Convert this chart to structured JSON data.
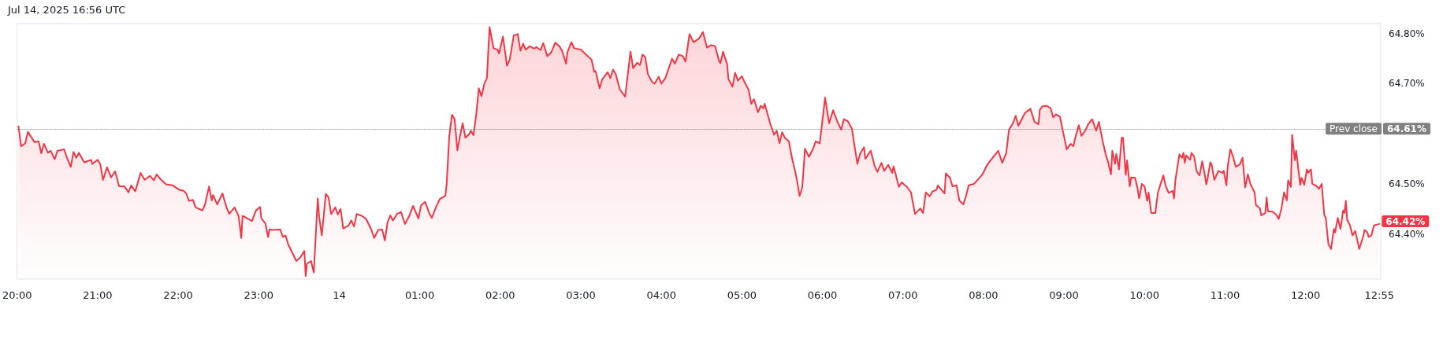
{
  "chart_data": {
    "type": "area",
    "annotations": [
      "Jul 14, 2025 16:56 UTC",
      "64.61%",
      {
        "text": "64.42%",
        "x": "2025-07-14T12:55",
        "y": 64.42
      }
    ],
    "xlim": [
      "2025-07-13T20:00",
      "2025-07-14T12:56"
    ],
    "xticks": [
      {
        "value": "2025-07-13T20:00",
        "label": "20:00"
      },
      {
        "value": "2025-07-13T21:00",
        "label": "21:00"
      },
      {
        "value": "2025-07-13T22:00",
        "label": "22:00"
      },
      {
        "value": "2025-07-13T23:00",
        "label": "23:00"
      },
      {
        "value": "2025-07-14T00:00",
        "label": "14"
      },
      {
        "value": "2025-07-14T01:00",
        "label": "01:00"
      },
      {
        "value": "2025-07-14T02:00",
        "label": "02:00"
      },
      {
        "value": "2025-07-14T03:00",
        "label": "03:00"
      },
      {
        "value": "2025-07-14T04:00",
        "label": "04:00"
      },
      {
        "value": "2025-07-14T05:00",
        "label": "05:00"
      },
      {
        "value": "2025-07-14T06:00",
        "label": "06:00"
      },
      {
        "value": "2025-07-14T07:00",
        "label": "07:00"
      },
      {
        "value": "2025-07-14T08:00",
        "label": "08:00"
      },
      {
        "value": "2025-07-14T09:00",
        "label": "09:00"
      },
      {
        "value": "2025-07-14T10:00",
        "label": "10:00"
      },
      {
        "value": "2025-07-14T11:00",
        "label": "11:00"
      },
      {
        "value": "2025-07-14T12:00",
        "label": "12:00"
      },
      {
        "value": "2025-07-14T12:55",
        "label": "12:55"
      }
    ],
    "ylim": [
      64.31,
      64.82
    ],
    "yticks": [
      {
        "value": 64.4,
        "label": "64.40%"
      },
      {
        "value": 64.5,
        "label": "64.50%"
      },
      {
        "value": 64.7,
        "label": "64.70%"
      },
      {
        "value": 64.8,
        "label": "64.80%"
      }
    ],
    "ref_lines": [
      {
        "axis": "y",
        "value": 64.61,
        "label": "Prev close",
        "color": "#808080",
        "line_style": "dotted"
      }
    ],
    "marker": "none",
    "line_style": "solid",
    "series": [
      {
        "color": "#f23645",
        "x": [
          "2025-07-13T20:01",
          "2025-07-13T20:03",
          "2025-07-13T20:06",
          "2025-07-13T20:08",
          "2025-07-13T20:13",
          "2025-07-13T20:16",
          "2025-07-13T20:18",
          "2025-07-13T20:20",
          "2025-07-13T20:23",
          "2025-07-13T20:25",
          "2025-07-13T20:28",
          "2025-07-13T20:30",
          "2025-07-13T20:35",
          "2025-07-13T20:37",
          "2025-07-13T20:40",
          "2025-07-13T20:42",
          "2025-07-13T20:44",
          "2025-07-13T20:46",
          "2025-07-13T20:50",
          "2025-07-13T20:55",
          "2025-07-13T20:56",
          "2025-07-13T21:00",
          "2025-07-13T21:02",
          "2025-07-13T21:04",
          "2025-07-13T21:07",
          "2025-07-13T21:10",
          "2025-07-13T21:13",
          "2025-07-13T21:16",
          "2025-07-13T21:20",
          "2025-07-13T21:23",
          "2025-07-13T21:25",
          "2025-07-13T21:28",
          "2025-07-13T21:32",
          "2025-07-13T21:35",
          "2025-07-13T21:39",
          "2025-07-13T21:42",
          "2025-07-13T21:44",
          "2025-07-13T21:47",
          "2025-07-13T21:51",
          "2025-07-13T21:56",
          "2025-07-13T22:01",
          "2025-07-13T22:04",
          "2025-07-13T22:06",
          "2025-07-13T22:08",
          "2025-07-13T22:11",
          "2025-07-13T22:13",
          "2025-07-13T22:18",
          "2025-07-13T22:20",
          "2025-07-13T22:23",
          "2025-07-13T22:25",
          "2025-07-13T22:26",
          "2025-07-13T22:29",
          "2025-07-13T22:33",
          "2025-07-13T22:36",
          "2025-07-13T22:38",
          "2025-07-13T22:42",
          "2025-07-13T22:45",
          "2025-07-13T22:47",
          "2025-07-13T22:48",
          "2025-07-13T22:51",
          "2025-07-13T22:55",
          "2025-07-13T22:58",
          "2025-07-13T23:01",
          "2025-07-13T23:02",
          "2025-07-13T23:05",
          "2025-07-13T23:07",
          "2025-07-13T23:08",
          "2025-07-13T23:11",
          "2025-07-13T23:16",
          "2025-07-13T23:18",
          "2025-07-13T23:20",
          "2025-07-13T23:22",
          "2025-07-13T23:24",
          "2025-07-13T23:28",
          "2025-07-13T23:31",
          "2025-07-13T23:34",
          "2025-07-13T23:35",
          "2025-07-13T23:36",
          "2025-07-13T23:39",
          "2025-07-13T23:41",
          "2025-07-13T23:44",
          "2025-07-13T23:45",
          "2025-07-13T23:47",
          "2025-07-13T23:50",
          "2025-07-13T23:52",
          "2025-07-13T23:54",
          "2025-07-13T23:57",
          "2025-07-13T23:59",
          "2025-07-14T00:01",
          "2025-07-14T00:03",
          "2025-07-14T00:07",
          "2025-07-14T00:09",
          "2025-07-14T00:11",
          "2025-07-14T00:13",
          "2025-07-14T00:17",
          "2025-07-14T00:20",
          "2025-07-14T00:24",
          "2025-07-14T00:26",
          "2025-07-14T00:29",
          "2025-07-14T00:32",
          "2025-07-14T00:34",
          "2025-07-14T00:36",
          "2025-07-14T00:38",
          "2025-07-14T00:40",
          "2025-07-14T00:43",
          "2025-07-14T00:46",
          "2025-07-14T00:49",
          "2025-07-14T00:52",
          "2025-07-14T00:55",
          "2025-07-14T00:59",
          "2025-07-14T01:01",
          "2025-07-14T01:04",
          "2025-07-14T01:07",
          "2025-07-14T01:09",
          "2025-07-14T01:12",
          "2025-07-14T01:15",
          "2025-07-14T01:19",
          "2025-07-14T01:20",
          "2025-07-14T01:22",
          "2025-07-14T01:24",
          "2025-07-14T01:26",
          "2025-07-14T01:28",
          "2025-07-14T01:30",
          "2025-07-14T01:32",
          "2025-07-14T01:34",
          "2025-07-14T01:37",
          "2025-07-14T01:38",
          "2025-07-14T01:40",
          "2025-07-14T01:42",
          "2025-07-14T01:44",
          "2025-07-14T01:46",
          "2025-07-14T01:48",
          "2025-07-14T01:50",
          "2025-07-14T01:52",
          "2025-07-14T01:55",
          "2025-07-14T01:58",
          "2025-07-14T01:59",
          "2025-07-14T02:02",
          "2025-07-14T02:05",
          "2025-07-14T02:07",
          "2025-07-14T02:10",
          "2025-07-14T02:13",
          "2025-07-14T02:15",
          "2025-07-14T02:17",
          "2025-07-14T02:19",
          "2025-07-14T02:22",
          "2025-07-14T02:25",
          "2025-07-14T02:27",
          "2025-07-14T02:30",
          "2025-07-14T02:32",
          "2025-07-14T02:35",
          "2025-07-14T02:38",
          "2025-07-14T02:41",
          "2025-07-14T02:44",
          "2025-07-14T02:46",
          "2025-07-14T02:49",
          "2025-07-14T02:50",
          "2025-07-14T02:53",
          "2025-07-14T02:55",
          "2025-07-14T03:00",
          "2025-07-14T03:04",
          "2025-07-14T03:08",
          "2025-07-14T03:10",
          "2025-07-14T03:11",
          "2025-07-14T03:14",
          "2025-07-14T03:16",
          "2025-07-14T03:20",
          "2025-07-14T03:22",
          "2025-07-14T03:24",
          "2025-07-14T03:26",
          "2025-07-14T03:29",
          "2025-07-14T03:33",
          "2025-07-14T03:37",
          "2025-07-14T03:39",
          "2025-07-14T03:42",
          "2025-07-14T03:44",
          "2025-07-14T03:46",
          "2025-07-14T03:48",
          "2025-07-14T03:50",
          "2025-07-14T03:53",
          "2025-07-14T03:55",
          "2025-07-14T03:58",
          "2025-07-14T04:00",
          "2025-07-14T04:03",
          "2025-07-14T04:05",
          "2025-07-14T04:08",
          "2025-07-14T04:10",
          "2025-07-14T04:13",
          "2025-07-14T04:16",
          "2025-07-14T04:18",
          "2025-07-14T04:21",
          "2025-07-14T04:24",
          "2025-07-14T04:28",
          "2025-07-14T04:31",
          "2025-07-14T04:34",
          "2025-07-14T04:37",
          "2025-07-14T04:40",
          "2025-07-14T04:43",
          "2025-07-14T04:44",
          "2025-07-14T04:46",
          "2025-07-14T04:49",
          "2025-07-14T04:50",
          "2025-07-14T04:53",
          "2025-07-14T04:55",
          "2025-07-14T04:57",
          "2025-07-14T05:00",
          "2025-07-14T05:02",
          "2025-07-14T05:05",
          "2025-07-14T05:07",
          "2025-07-14T05:09",
          "2025-07-14T05:12",
          "2025-07-14T05:14",
          "2025-07-14T05:16",
          "2025-07-14T05:17",
          "2025-07-14T05:21",
          "2025-07-14T05:24",
          "2025-07-14T05:26",
          "2025-07-14T05:28",
          "2025-07-14T05:30",
          "2025-07-14T05:32",
          "2025-07-14T05:35",
          "2025-07-14T05:37",
          "2025-07-14T05:40",
          "2025-07-14T05:41",
          "2025-07-14T05:43",
          "2025-07-14T05:45",
          "2025-07-14T05:47",
          "2025-07-14T05:50",
          "2025-07-14T05:53",
          "2025-07-14T05:55",
          "2025-07-14T05:58",
          "2025-07-14T06:02",
          "2025-07-14T06:05",
          "2025-07-14T06:08",
          "2025-07-14T06:11",
          "2025-07-14T06:14",
          "2025-07-14T06:16",
          "2025-07-14T06:19",
          "2025-07-14T06:22",
          "2025-07-14T06:26",
          "2025-07-14T06:28",
          "2025-07-14T06:31",
          "2025-07-14T06:32",
          "2025-07-14T06:36",
          "2025-07-14T06:39",
          "2025-07-14T06:41",
          "2025-07-14T06:44",
          "2025-07-14T06:46",
          "2025-07-14T06:49",
          "2025-07-14T06:52",
          "2025-07-14T06:53",
          "2025-07-14T06:57",
          "2025-07-14T06:59",
          "2025-07-14T07:03",
          "2025-07-14T07:06",
          "2025-07-14T07:09",
          "2025-07-14T07:13",
          "2025-07-14T07:15",
          "2025-07-14T07:17",
          "2025-07-14T07:20",
          "2025-07-14T07:22",
          "2025-07-14T07:25",
          "2025-07-14T07:26",
          "2025-07-14T07:31",
          "2025-07-14T07:32",
          "2025-07-14T07:35",
          "2025-07-14T07:37",
          "2025-07-14T07:40",
          "2025-07-14T07:42",
          "2025-07-14T07:45",
          "2025-07-14T07:47",
          "2025-07-14T07:49",
          "2025-07-14T07:53",
          "2025-07-14T07:56",
          "2025-07-14T07:59",
          "2025-07-14T08:03",
          "2025-07-14T08:08",
          "2025-07-14T08:11",
          "2025-07-14T08:14",
          "2025-07-14T08:17",
          "2025-07-14T08:19",
          "2025-07-14T08:22",
          "2025-07-14T08:24",
          "2025-07-14T08:26",
          "2025-07-14T08:31",
          "2025-07-14T08:35",
          "2025-07-14T08:38",
          "2025-07-14T08:41",
          "2025-07-14T08:42",
          "2025-07-14T08:44",
          "2025-07-14T08:47",
          "2025-07-14T08:50",
          "2025-07-14T08:52",
          "2025-07-14T08:54",
          "2025-07-14T08:57",
          "2025-07-14T08:59",
          "2025-07-14T09:02",
          "2025-07-14T09:05",
          "2025-07-14T09:07",
          "2025-07-14T09:08",
          "2025-07-14T09:11",
          "2025-07-14T09:13",
          "2025-07-14T09:16",
          "2025-07-14T09:18",
          "2025-07-14T09:21",
          "2025-07-14T09:24",
          "2025-07-14T09:26",
          "2025-07-14T09:29",
          "2025-07-14T09:31",
          "2025-07-14T09:33",
          "2025-07-14T09:35",
          "2025-07-14T09:36",
          "2025-07-14T09:38",
          "2025-07-14T09:39",
          "2025-07-14T09:41",
          "2025-07-14T09:43",
          "2025-07-14T09:44",
          "2025-07-14T09:46",
          "2025-07-14T09:47",
          "2025-07-14T09:49",
          "2025-07-14T09:50",
          "2025-07-14T09:53",
          "2025-07-14T09:55",
          "2025-07-14T09:56",
          "2025-07-14T09:58",
          "2025-07-14T10:00",
          "2025-07-14T10:02",
          "2025-07-14T10:03",
          "2025-07-14T10:05",
          "2025-07-14T10:08",
          "2025-07-14T10:10",
          "2025-07-14T10:12",
          "2025-07-14T10:14",
          "2025-07-14T10:16",
          "2025-07-14T10:18",
          "2025-07-14T10:21",
          "2025-07-14T10:22",
          "2025-07-14T10:23",
          "2025-07-14T10:26",
          "2025-07-14T10:28",
          "2025-07-14T10:29",
          "2025-07-14T10:30",
          "2025-07-14T10:31",
          "2025-07-14T10:34",
          "2025-07-14T10:35",
          "2025-07-14T10:37",
          "2025-07-14T10:39",
          "2025-07-14T10:41",
          "2025-07-14T10:43",
          "2025-07-14T10:45",
          "2025-07-14T10:46",
          "2025-07-14T10:47",
          "2025-07-14T10:49",
          "2025-07-14T10:50",
          "2025-07-14T10:52",
          "2025-07-14T10:55",
          "2025-07-14T10:58",
          "2025-07-14T10:59",
          "2025-07-14T11:01",
          "2025-07-14T11:02",
          "2025-07-14T11:04",
          "2025-07-14T11:06",
          "2025-07-14T11:08",
          "2025-07-14T11:11",
          "2025-07-14T11:13",
          "2025-07-14T11:15",
          "2025-07-14T11:17",
          "2025-07-14T11:19",
          "2025-07-14T11:22",
          "2025-07-14T11:23",
          "2025-07-14T11:26",
          "2025-07-14T11:27",
          "2025-07-14T11:30",
          "2025-07-14T11:31",
          "2025-07-14T11:32",
          "2025-07-14T11:35",
          "2025-07-14T11:38",
          "2025-07-14T11:40",
          "2025-07-14T11:42",
          "2025-07-14T11:44",
          "2025-07-14T11:46",
          "2025-07-14T11:47",
          "2025-07-14T11:49",
          "2025-07-14T11:50",
          "2025-07-14T11:52",
          "2025-07-14T11:53",
          "2025-07-14T11:56",
          "2025-07-14T11:57",
          "2025-07-14T11:59",
          "2025-07-14T12:01",
          "2025-07-14T12:02",
          "2025-07-14T12:04",
          "2025-07-14T12:05",
          "2025-07-14T12:08",
          "2025-07-14T12:10",
          "2025-07-14T12:12",
          "2025-07-14T12:14",
          "2025-07-14T12:15",
          "2025-07-14T12:17",
          "2025-07-14T12:19",
          "2025-07-14T12:21",
          "2025-07-14T12:22",
          "2025-07-14T12:24",
          "2025-07-14T12:26",
          "2025-07-14T12:28",
          "2025-07-14T12:29",
          "2025-07-14T12:30",
          "2025-07-14T12:31",
          "2025-07-14T12:33",
          "2025-07-14T12:35",
          "2025-07-14T12:37",
          "2025-07-14T12:39",
          "2025-07-14T12:40",
          "2025-07-14T12:43",
          "2025-07-14T12:44",
          "2025-07-14T12:46",
          "2025-07-14T12:47",
          "2025-07-14T12:49",
          "2025-07-14T12:51",
          "2025-07-14T12:55"
        ],
        "values": [
          64.615,
          64.575,
          64.581,
          64.604,
          64.583,
          64.585,
          64.561,
          64.58,
          64.562,
          64.566,
          64.549,
          64.566,
          64.569,
          64.553,
          64.534,
          64.564,
          64.552,
          64.562,
          64.543,
          64.548,
          64.54,
          64.548,
          64.539,
          64.508,
          64.533,
          64.513,
          64.525,
          64.495,
          64.495,
          64.483,
          64.497,
          64.485,
          64.522,
          64.508,
          64.516,
          64.507,
          64.519,
          64.509,
          64.499,
          64.497,
          64.488,
          64.486,
          64.481,
          64.466,
          64.468,
          64.453,
          64.447,
          64.459,
          64.495,
          64.467,
          64.478,
          64.459,
          64.481,
          64.453,
          64.44,
          64.453,
          64.436,
          64.392,
          64.436,
          64.432,
          64.426,
          64.447,
          64.454,
          64.431,
          64.421,
          64.394,
          64.409,
          64.408,
          64.409,
          64.394,
          64.397,
          64.379,
          64.368,
          64.346,
          64.353,
          64.366,
          64.316,
          64.341,
          64.346,
          64.323,
          64.471,
          64.435,
          64.397,
          64.48,
          64.473,
          64.44,
          64.453,
          64.439,
          64.45,
          64.411,
          64.417,
          64.427,
          64.415,
          64.44,
          64.436,
          64.43,
          64.408,
          64.392,
          64.408,
          64.409,
          64.387,
          64.423,
          64.437,
          64.427,
          64.44,
          64.444,
          64.42,
          64.435,
          64.456,
          64.431,
          64.457,
          64.464,
          64.442,
          64.432,
          64.453,
          64.47,
          64.476,
          64.498,
          64.596,
          64.638,
          64.629,
          64.567,
          64.596,
          64.621,
          64.592,
          64.6,
          64.606,
          64.597,
          64.637,
          64.691,
          64.675,
          64.699,
          64.711,
          64.813,
          64.771,
          64.768,
          64.76,
          64.794,
          64.736,
          64.748,
          64.796,
          64.799,
          64.766,
          64.78,
          64.768,
          64.775,
          64.77,
          64.773,
          64.767,
          64.781,
          64.755,
          64.763,
          64.782,
          64.775,
          64.766,
          64.74,
          64.763,
          64.783,
          64.771,
          64.768,
          64.758,
          64.748,
          64.724,
          64.725,
          64.691,
          64.709,
          64.723,
          64.711,
          64.728,
          64.719,
          64.689,
          64.674,
          64.764,
          64.731,
          64.742,
          64.737,
          64.758,
          64.753,
          64.719,
          64.704,
          64.7,
          64.714,
          64.7,
          64.711,
          64.727,
          64.75,
          64.74,
          64.758,
          64.755,
          64.744,
          64.799,
          64.783,
          64.79,
          64.803,
          64.772,
          64.777,
          64.775,
          64.746,
          64.741,
          64.764,
          64.739,
          64.709,
          64.694,
          64.722,
          64.706,
          64.715,
          64.703,
          64.688,
          64.66,
          64.669,
          64.643,
          64.656,
          64.651,
          64.66,
          64.621,
          64.598,
          64.606,
          64.581,
          64.603,
          64.592,
          64.585,
          64.556,
          64.521,
          64.508,
          64.476,
          64.493,
          64.57,
          64.554,
          64.57,
          64.585,
          64.581,
          64.672,
          64.621,
          64.647,
          64.625,
          64.608,
          64.629,
          64.625,
          64.61,
          64.54,
          64.56,
          64.573,
          64.55,
          64.566,
          64.535,
          64.524,
          64.542,
          64.526,
          64.538,
          64.522,
          64.535,
          64.494,
          64.503,
          64.494,
          64.483,
          64.44,
          64.451,
          64.442,
          64.483,
          64.475,
          64.485,
          64.488,
          64.497,
          64.481,
          64.521,
          64.512,
          64.495,
          64.497,
          64.467,
          64.459,
          64.476,
          64.497,
          64.5,
          64.509,
          64.518,
          64.539,
          64.556,
          64.566,
          64.542,
          64.562,
          64.608,
          64.621,
          64.636,
          64.616,
          64.642,
          64.65,
          64.624,
          64.619,
          64.648,
          64.655,
          64.656,
          64.651,
          64.633,
          64.639,
          64.634,
          64.608,
          64.569,
          64.58,
          64.575,
          64.588,
          64.617,
          64.596,
          64.607,
          64.619,
          64.629,
          64.606,
          64.624,
          64.583,
          64.56,
          64.542,
          64.519,
          64.566,
          64.54,
          64.56,
          64.529,
          64.592,
          64.592,
          64.518,
          64.547,
          64.495,
          64.513,
          64.512,
          64.488,
          64.471,
          64.5,
          64.495,
          64.466,
          64.483,
          64.442,
          64.442,
          64.483,
          64.5,
          64.517,
          64.494,
          64.482,
          64.486,
          64.471,
          64.508,
          64.559,
          64.552,
          64.562,
          64.542,
          64.557,
          64.548,
          64.562,
          64.554,
          64.524,
          64.517,
          64.545,
          64.517,
          64.499,
          64.511,
          64.543,
          64.539,
          64.508,
          64.526,
          64.522,
          64.526,
          64.497,
          64.536,
          64.569,
          64.554,
          64.534,
          64.539,
          64.552,
          64.493,
          64.519,
          64.499,
          64.483,
          64.458,
          64.451,
          64.437,
          64.442,
          64.473,
          64.445,
          64.445,
          64.439,
          64.43,
          64.451,
          64.483,
          64.467,
          64.507,
          64.494,
          64.598,
          64.547,
          64.566,
          64.498,
          64.512,
          64.498,
          64.529,
          64.522,
          64.529,
          64.5,
          64.496,
          64.49,
          64.5,
          64.437,
          64.433,
          64.38,
          64.37,
          64.41,
          64.403,
          64.432,
          64.41,
          64.447,
          64.442,
          64.466,
          64.428,
          64.418,
          64.397,
          64.406,
          64.382,
          64.37,
          64.396,
          64.408,
          64.403,
          64.394,
          64.397,
          64.417,
          64.42
        ]
      }
    ]
  }
}
